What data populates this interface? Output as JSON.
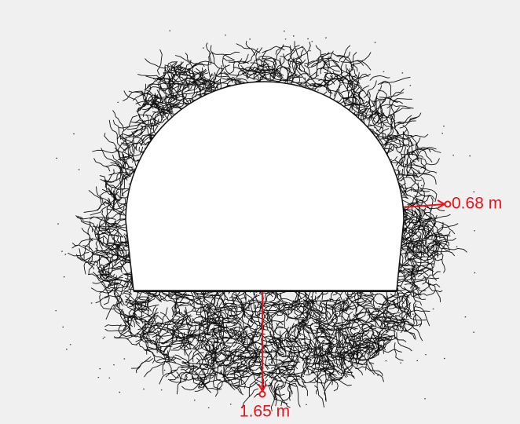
{
  "annotations": {
    "side": "0.68 m",
    "bottom": "1.65 m"
  }
}
